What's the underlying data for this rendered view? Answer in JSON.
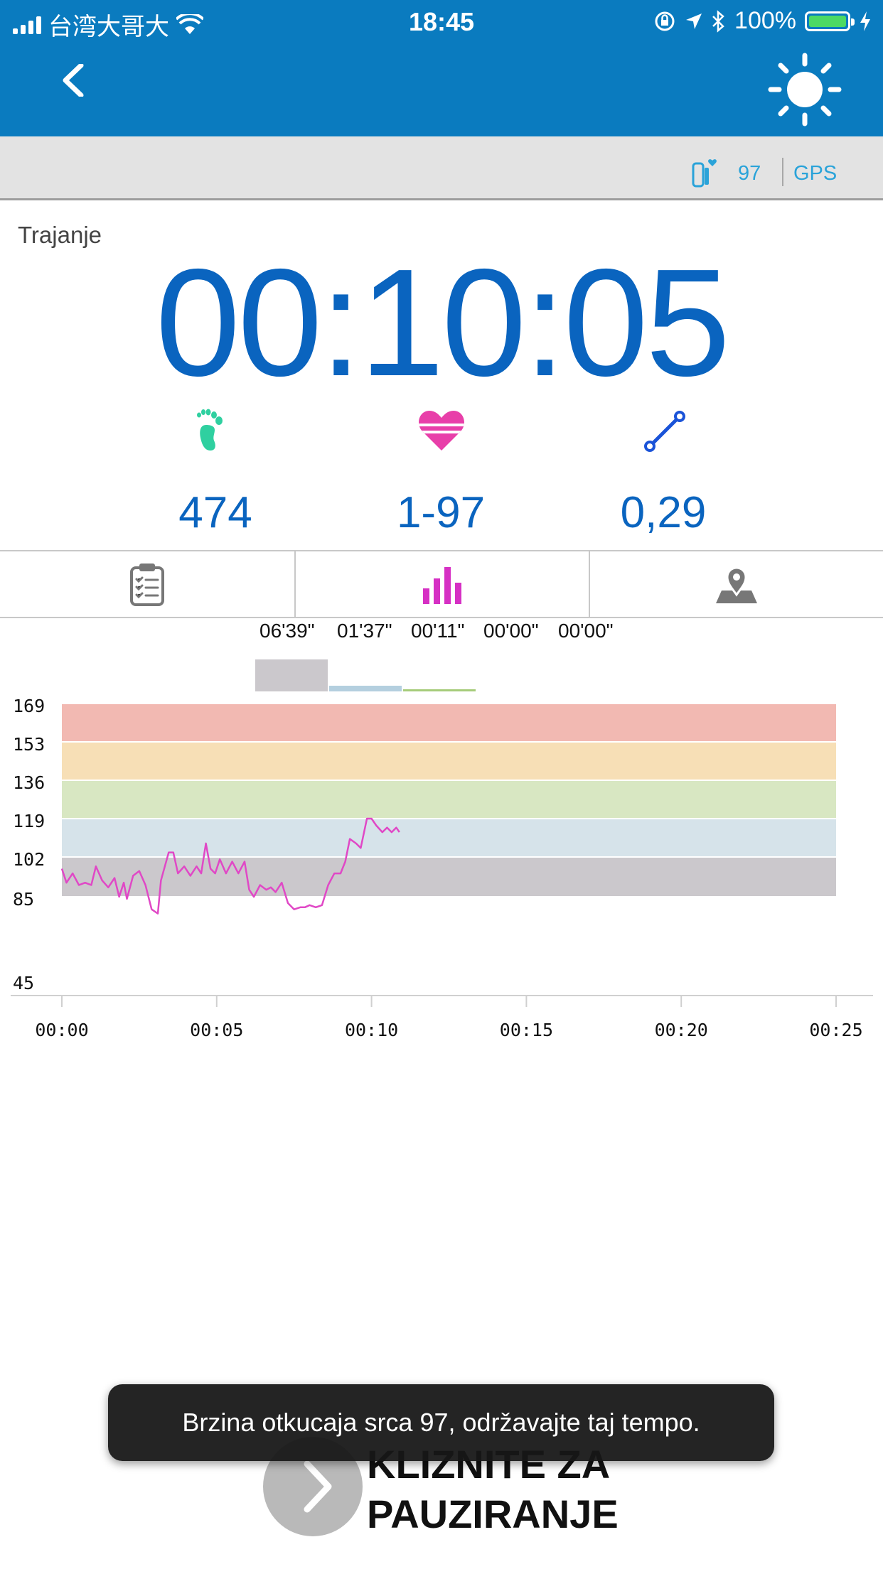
{
  "status_bar": {
    "carrier": "台湾大哥大",
    "time": "18:45",
    "battery": "100%"
  },
  "nav": {
    "back_icon": "chevron-left-icon",
    "brightness_icon": "sun-icon"
  },
  "device_bar": {
    "band_icon": "band-heart-icon",
    "heart_rate": "97",
    "gps_label": "GPS"
  },
  "duration": {
    "label": "Trajanje",
    "value": "00:10:05"
  },
  "metrics": {
    "steps": {
      "icon": "footprint-icon",
      "value": "474",
      "color": "#2fd0a0"
    },
    "heart_rate": {
      "icon": "heart-icon",
      "value": "1-97",
      "color": "#e83fa9"
    },
    "distance": {
      "icon": "route-icon",
      "value": "0,29",
      "color": "#1a53d8"
    }
  },
  "tabs": [
    {
      "icon": "clipboard-icon",
      "active": false
    },
    {
      "icon": "bar-chart-icon",
      "active": true
    },
    {
      "icon": "map-pin-icon",
      "active": false
    }
  ],
  "zone_times": [
    "06'39\"",
    "01'37\"",
    "00'11\"",
    "00'00\"",
    "00'00\""
  ],
  "chart_data": {
    "type": "line",
    "y_ticks": [
      169,
      153,
      136,
      119,
      102,
      85,
      45
    ],
    "x_ticks": [
      "00:00",
      "00:05",
      "00:10",
      "00:15",
      "00:20",
      "00:25"
    ],
    "xlim": [
      0,
      25
    ],
    "zones": [
      {
        "from": 85,
        "to": 102,
        "color": "#cbc8cc"
      },
      {
        "from": 102,
        "to": 119,
        "color": "#d6e3ea"
      },
      {
        "from": 119,
        "to": 136,
        "color": "#d8e7c2"
      },
      {
        "from": 136,
        "to": 153,
        "color": "#f7dfb6"
      },
      {
        "from": 153,
        "to": 169,
        "color": "#f2b9b2"
      }
    ],
    "zone_bars": [
      {
        "minutes": 6.65,
        "color": "#cbc8cc"
      },
      {
        "minutes": 1.62,
        "color": "#b4cfdf"
      },
      {
        "minutes": 0.18,
        "color": "#a6cc7a"
      },
      {
        "minutes": 0,
        "color": "#ecc27a"
      },
      {
        "minutes": 0,
        "color": "#e99a93"
      }
    ],
    "series": [
      {
        "color": "#e048c6",
        "x": [
          0,
          0.15,
          0.35,
          0.55,
          0.75,
          0.95,
          1.1,
          1.3,
          1.5,
          1.7,
          1.85,
          2.0,
          2.1,
          2.3,
          2.5,
          2.7,
          2.9,
          3.1,
          3.2,
          3.45,
          3.6,
          3.75,
          3.95,
          4.15,
          4.35,
          4.5,
          4.65,
          4.8,
          4.95,
          5.1,
          5.3,
          5.5,
          5.7,
          5.9,
          6.05,
          6.2,
          6.4,
          6.6,
          6.75,
          6.9,
          7.1,
          7.3,
          7.5,
          7.7,
          7.85,
          8.0,
          8.2,
          8.4,
          8.6,
          8.8,
          9.0,
          9.15,
          9.3,
          9.5,
          9.65,
          9.85,
          10.0,
          10.15,
          10.35,
          10.5,
          10.65,
          10.8,
          10.9
        ],
        "y": [
          97,
          91,
          95,
          90,
          91,
          90,
          98,
          92,
          89,
          93,
          85,
          91,
          84,
          94,
          96,
          90,
          79,
          77,
          92,
          104,
          104,
          95,
          98,
          94,
          98,
          95,
          108,
          97,
          95,
          101,
          95,
          100,
          95,
          100,
          88,
          85,
          90,
          88,
          89,
          87,
          91,
          82,
          79,
          80,
          80,
          81,
          80,
          81,
          90,
          95,
          95,
          100,
          110,
          108,
          106,
          119,
          119,
          116,
          113,
          115,
          113,
          115,
          113
        ]
      }
    ]
  },
  "toast": {
    "message": "Brzina otkucaja srca 97, održavajte taj tempo."
  },
  "slider": {
    "label_line1": "KLIZNITE ZA",
    "label_line2": "PAUZIRANJE",
    "icon": "chevron-right-icon"
  }
}
